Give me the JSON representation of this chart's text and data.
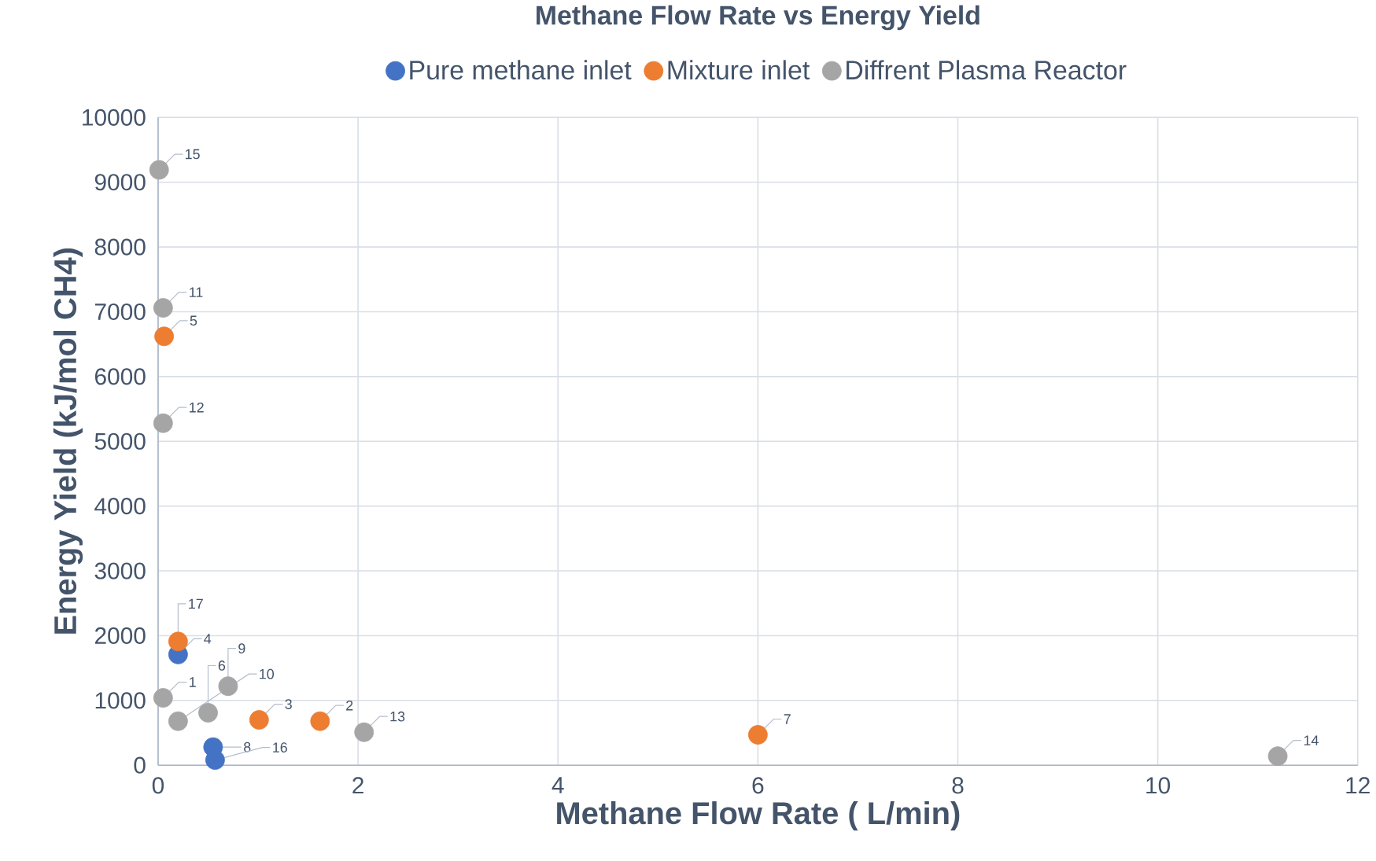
{
  "chart_data": {
    "type": "scatter",
    "title": "Methane Flow Rate vs Energy Yield",
    "xlabel": "Methane Flow Rate ( L/min)",
    "ylabel": "Energy Yield (kJ/mol CH4)",
    "xlim": [
      0,
      12
    ],
    "xticks": [
      0,
      2,
      4,
      6,
      8,
      10,
      12
    ],
    "ylim": [
      0,
      10000
    ],
    "yticks": [
      0,
      1000,
      2000,
      3000,
      4000,
      5000,
      6000,
      7000,
      8000,
      9000,
      10000
    ],
    "grid": true,
    "legend": "top",
    "marker": "circle",
    "series": [
      {
        "name": "Pure methane inlet",
        "color": "#4472c4",
        "x": [
          0.2,
          0.55,
          0.57
        ],
        "values": [
          1710,
          280,
          80
        ]
      },
      {
        "name": "Mixture inlet",
        "color": "#ed7d31",
        "x": [
          0.2,
          0.06,
          1.01,
          1.62,
          6.0
        ],
        "values": [
          1910,
          6620,
          700,
          680,
          470
        ]
      },
      {
        "name": "Diffrent Plasma Reactor",
        "color": "#a5a5a5",
        "x": [
          0.01,
          0.05,
          0.05,
          0.05,
          0.2,
          0.5,
          0.7,
          2.06,
          11.2
        ],
        "values": [
          9190,
          7060,
          5280,
          1040,
          680,
          810,
          1220,
          510,
          140
        ]
      }
    ],
    "annotations": [
      {
        "text": "4",
        "x": 0.2,
        "y": 1710
      },
      {
        "text": "8",
        "x": 0.55,
        "y": 280
      },
      {
        "text": "16",
        "x": 0.57,
        "y": 80
      },
      {
        "text": "17",
        "x": 0.2,
        "y": 1910
      },
      {
        "text": "5",
        "x": 0.06,
        "y": 6620
      },
      {
        "text": "3",
        "x": 1.01,
        "y": 700
      },
      {
        "text": "2",
        "x": 1.62,
        "y": 680
      },
      {
        "text": "7",
        "x": 6.0,
        "y": 470
      },
      {
        "text": "15",
        "x": 0.01,
        "y": 9190
      },
      {
        "text": "11",
        "x": 0.05,
        "y": 7060
      },
      {
        "text": "12",
        "x": 0.05,
        "y": 5280
      },
      {
        "text": "1",
        "x": 0.05,
        "y": 1040
      },
      {
        "text": "10",
        "x": 0.2,
        "y": 680
      },
      {
        "text": "6",
        "x": 0.5,
        "y": 810
      },
      {
        "text": "9",
        "x": 0.7,
        "y": 1220
      },
      {
        "text": "13",
        "x": 2.06,
        "y": 510
      },
      {
        "text": "14",
        "x": 11.2,
        "y": 140
      }
    ]
  }
}
